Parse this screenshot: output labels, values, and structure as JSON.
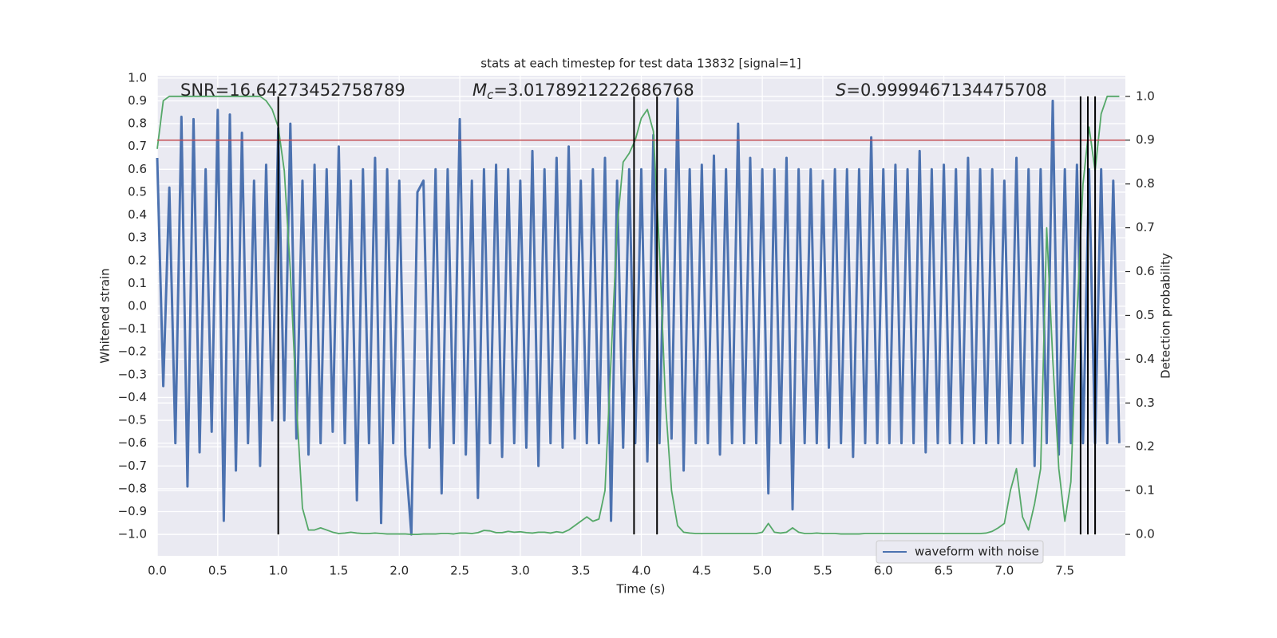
{
  "chart_data": {
    "type": "line",
    "title": "stats at each timestep for test data 13832 [signal=1]",
    "xlabel": "Time (s)",
    "ylabel": "Whitened strain",
    "y2label": "Detection probability",
    "grid": true,
    "legend": "lower right",
    "xlim": [
      0,
      8
    ],
    "ylim": [
      -1.094,
      1.01
    ],
    "y2lim": [
      -0.049,
      1.047
    ],
    "xticks": [
      {
        "value": 0,
        "label": "0.0"
      },
      0.5,
      {
        "value": 1,
        "label": "1.0"
      },
      1.5,
      {
        "value": 2,
        "label": "2.0"
      },
      2.5,
      {
        "value": 3,
        "label": "3.0"
      },
      3.5,
      {
        "value": 4,
        "label": "4.0"
      },
      4.5,
      {
        "value": 5,
        "label": "5.0"
      },
      5.5,
      {
        "value": 6,
        "label": "6.0"
      },
      6.5,
      {
        "value": 7,
        "label": "7.0"
      },
      7.5
    ],
    "yticks": [
      {
        "value": -1,
        "label": "−1.0"
      },
      {
        "value": -0.9,
        "label": "−0.9"
      },
      {
        "value": -0.8,
        "label": "−0.8"
      },
      {
        "value": -0.7,
        "label": "−0.7"
      },
      {
        "value": -0.6,
        "label": "−0.6"
      },
      {
        "value": -0.5,
        "label": "−0.5"
      },
      {
        "value": -0.4,
        "label": "−0.4"
      },
      {
        "value": -0.3,
        "label": "−0.3"
      },
      {
        "value": -0.2,
        "label": "−0.2"
      },
      {
        "value": -0.1,
        "label": "−0.1"
      },
      {
        "value": 0,
        "label": "0.0"
      },
      0.1,
      0.2,
      0.3,
      0.4,
      0.5,
      0.6,
      0.7,
      0.8,
      0.9,
      {
        "value": 1,
        "label": "1.0"
      }
    ],
    "y2ticks": [
      {
        "value": 0,
        "label": "0.0"
      },
      0.1,
      0.2,
      0.3,
      0.4,
      0.5,
      0.6,
      0.7,
      0.8,
      0.9,
      {
        "value": 1,
        "label": "1.0"
      }
    ],
    "annotations": [
      {
        "text": "SNR=16.64273452758789"
      },
      {
        "symbol": "M",
        "subscript": "c",
        "text": "=3.0178921222686768"
      },
      {
        "symbol": "S",
        "text": "=0.9999467134475708"
      }
    ],
    "hline": {
      "value": 0.9,
      "axis": "y2",
      "color": "#c44e52"
    },
    "vlines": [
      1.0,
      3.94,
      4.13,
      7.63,
      7.69,
      7.75
    ],
    "vline_color": "#000000",
    "x": [
      0,
      0.05,
      0.1,
      0.15,
      0.2,
      0.25,
      0.3,
      0.35,
      0.4,
      0.45,
      0.5,
      0.55,
      0.6,
      0.65,
      0.7,
      0.75,
      0.8,
      0.85,
      0.9,
      0.95,
      1,
      1.05,
      1.1,
      1.15,
      1.2,
      1.25,
      1.3,
      1.35,
      1.4,
      1.45,
      1.5,
      1.55,
      1.6,
      1.65,
      1.7,
      1.75,
      1.8,
      1.85,
      1.9,
      1.95,
      2,
      2.05,
      2.1,
      2.15,
      2.2,
      2.25,
      2.3,
      2.35,
      2.4,
      2.45,
      2.5,
      2.55,
      2.6,
      2.65,
      2.7,
      2.75,
      2.8,
      2.85,
      2.9,
      2.95,
      3,
      3.05,
      3.1,
      3.15,
      3.2,
      3.25,
      3.3,
      3.35,
      3.4,
      3.45,
      3.5,
      3.55,
      3.6,
      3.65,
      3.7,
      3.75,
      3.8,
      3.85,
      3.9,
      3.95,
      4,
      4.05,
      4.1,
      4.15,
      4.2,
      4.25,
      4.3,
      4.35,
      4.4,
      4.45,
      4.5,
      4.55,
      4.6,
      4.65,
      4.7,
      4.75,
      4.8,
      4.85,
      4.9,
      4.95,
      5,
      5.05,
      5.1,
      5.15,
      5.2,
      5.25,
      5.3,
      5.35,
      5.4,
      5.45,
      5.5,
      5.55,
      5.6,
      5.65,
      5.7,
      5.75,
      5.8,
      5.85,
      5.9,
      5.95,
      6,
      6.05,
      6.1,
      6.15,
      6.2,
      6.25,
      6.3,
      6.35,
      6.4,
      6.45,
      6.5,
      6.55,
      6.6,
      6.65,
      6.7,
      6.75,
      6.8,
      6.85,
      6.9,
      6.95,
      7,
      7.05,
      7.1,
      7.15,
      7.2,
      7.25,
      7.3,
      7.35,
      7.4,
      7.45,
      7.5,
      7.55,
      7.6,
      7.65,
      7.7,
      7.75,
      7.8,
      7.85,
      7.9,
      7.95
    ],
    "series": [
      {
        "name": "waveform with noise",
        "color": "#4c72b0",
        "axis": "y",
        "values": [
          0.65,
          -0.35,
          0.52,
          -0.6,
          0.83,
          -0.79,
          0.82,
          -0.64,
          0.6,
          -0.55,
          0.86,
          -0.94,
          0.84,
          -0.72,
          0.76,
          -0.6,
          0.55,
          -0.7,
          0.62,
          -0.5,
          0.78,
          -0.5,
          0.8,
          -0.58,
          0.55,
          -0.65,
          0.62,
          -0.6,
          0.6,
          -0.55,
          0.7,
          -0.6,
          0.55,
          -0.85,
          0.6,
          -0.6,
          0.65,
          -0.95,
          0.6,
          -0.6,
          0.55,
          -0.65,
          -1.0,
          0.5,
          0.55,
          -0.62,
          0.6,
          -0.82,
          0.6,
          -0.6,
          0.82,
          -0.65,
          0.55,
          -0.84,
          0.6,
          -0.6,
          0.62,
          -0.66,
          0.6,
          -0.6,
          0.55,
          -0.62,
          0.68,
          -0.7,
          0.6,
          -0.6,
          0.65,
          -0.62,
          0.7,
          -0.58,
          0.55,
          -0.6,
          0.6,
          -0.6,
          0.65,
          -0.94,
          0.55,
          -0.62,
          0.6,
          -0.6,
          0.6,
          -0.68,
          0.75,
          -0.6,
          0.6,
          -0.58,
          0.91,
          -0.72,
          0.6,
          -0.6,
          0.62,
          -0.6,
          0.66,
          -0.65,
          0.6,
          -0.6,
          0.8,
          -0.6,
          0.65,
          -0.6,
          0.6,
          -0.82,
          0.6,
          -0.6,
          0.65,
          -0.89,
          0.6,
          -0.6,
          0.6,
          -0.6,
          0.55,
          -0.62,
          0.6,
          -0.6,
          0.6,
          -0.66,
          0.6,
          -0.6,
          0.74,
          -0.6,
          0.6,
          -0.6,
          0.62,
          -0.6,
          0.6,
          -0.6,
          0.68,
          -0.64,
          0.6,
          -0.6,
          0.62,
          -0.6,
          0.6,
          -0.6,
          0.65,
          -0.6,
          0.6,
          -0.6,
          0.6,
          -0.6,
          0.55,
          -0.6,
          0.65,
          -0.6,
          0.6,
          -0.7,
          0.6,
          -0.6,
          0.9,
          -0.65,
          0.6,
          -0.6,
          0.62,
          -0.6,
          0.6,
          -0.6,
          0.6,
          -0.6,
          0.55,
          -0.6
        ]
      },
      {
        "color": "#55a868",
        "axis": "y2",
        "values": [
          0.88,
          0.99,
          1.0,
          1.0,
          1.0,
          1.0,
          1.0,
          1.0,
          1.0,
          1.0,
          1.0,
          1.0,
          1.0,
          1.0,
          1.0,
          1.0,
          1.0,
          1.0,
          0.99,
          0.97,
          0.93,
          0.83,
          0.6,
          0.3,
          0.06,
          0.01,
          0.01,
          0.015,
          0.01,
          0.005,
          0.002,
          0.003,
          0.005,
          0.003,
          0.002,
          0.002,
          0.003,
          0.002,
          0.001,
          0.001,
          0.001,
          0.001,
          0.0,
          0.0,
          0.001,
          0.001,
          0.001,
          0.002,
          0.002,
          0.001,
          0.003,
          0.003,
          0.002,
          0.004,
          0.009,
          0.008,
          0.004,
          0.004,
          0.007,
          0.005,
          0.006,
          0.004,
          0.003,
          0.005,
          0.005,
          0.003,
          0.006,
          0.004,
          0.01,
          0.02,
          0.03,
          0.04,
          0.03,
          0.035,
          0.1,
          0.4,
          0.7,
          0.85,
          0.87,
          0.9,
          0.95,
          0.97,
          0.92,
          0.65,
          0.3,
          0.1,
          0.02,
          0.005,
          0.003,
          0.002,
          0.002,
          0.002,
          0.002,
          0.002,
          0.002,
          0.002,
          0.002,
          0.002,
          0.002,
          0.002,
          0.005,
          0.025,
          0.005,
          0.003,
          0.005,
          0.015,
          0.005,
          0.002,
          0.002,
          0.003,
          0.002,
          0.002,
          0.002,
          0.001,
          0.001,
          0.001,
          0.001,
          0.002,
          0.002,
          0.002,
          0.002,
          0.002,
          0.002,
          0.002,
          0.002,
          0.002,
          0.002,
          0.002,
          0.002,
          0.002,
          0.002,
          0.002,
          0.002,
          0.002,
          0.002,
          0.002,
          0.002,
          0.003,
          0.007,
          0.015,
          0.025,
          0.1,
          0.15,
          0.04,
          0.01,
          0.07,
          0.15,
          0.7,
          0.4,
          0.15,
          0.03,
          0.12,
          0.5,
          0.8,
          0.93,
          0.83,
          0.96,
          1.0,
          1.0,
          1.0
        ]
      }
    ]
  }
}
